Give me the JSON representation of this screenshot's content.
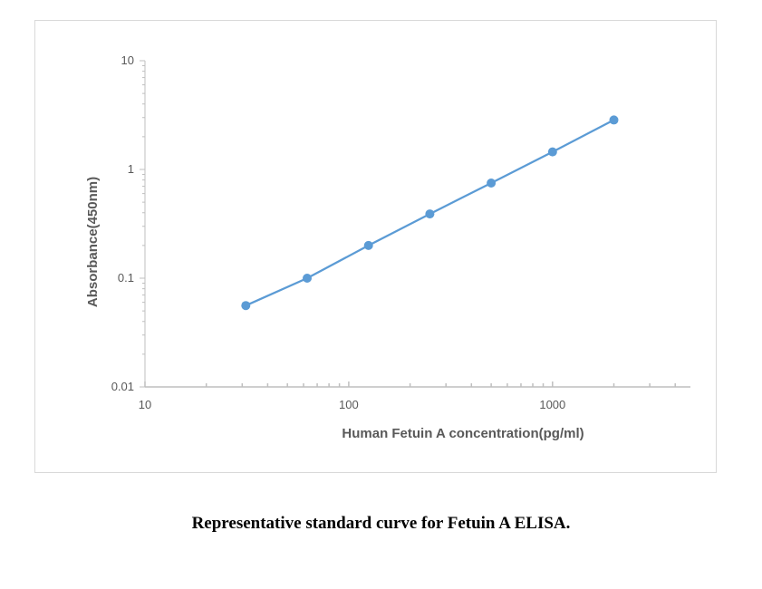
{
  "caption": "Representative standard curve for Fetuin A ELISA.",
  "colors": {
    "series": "#5b9bd5",
    "axis": "#bfbfbf",
    "text": "#595959"
  },
  "chart_data": {
    "type": "line",
    "xscale": "log",
    "yscale": "log",
    "xlabel": "Human Fetuin A concentration(pg/ml)",
    "ylabel": "Absorbance(450nm)",
    "xlim": [
      10,
      4750
    ],
    "ylim": [
      0.01,
      10
    ],
    "xticks": [
      10,
      100,
      1000
    ],
    "xtick_labels": [
      "10",
      "100",
      "1000"
    ],
    "yticks": [
      0.01,
      0.1,
      1,
      10
    ],
    "ytick_labels": [
      "0.01",
      "0.1",
      "1",
      "10"
    ],
    "grid": false,
    "legend": "none",
    "series": [
      {
        "x": [
          31.25,
          62.5,
          125,
          250,
          500,
          1000,
          2000
        ],
        "y": [
          0.056,
          0.1,
          0.2,
          0.39,
          0.75,
          1.45,
          2.85
        ]
      }
    ]
  }
}
